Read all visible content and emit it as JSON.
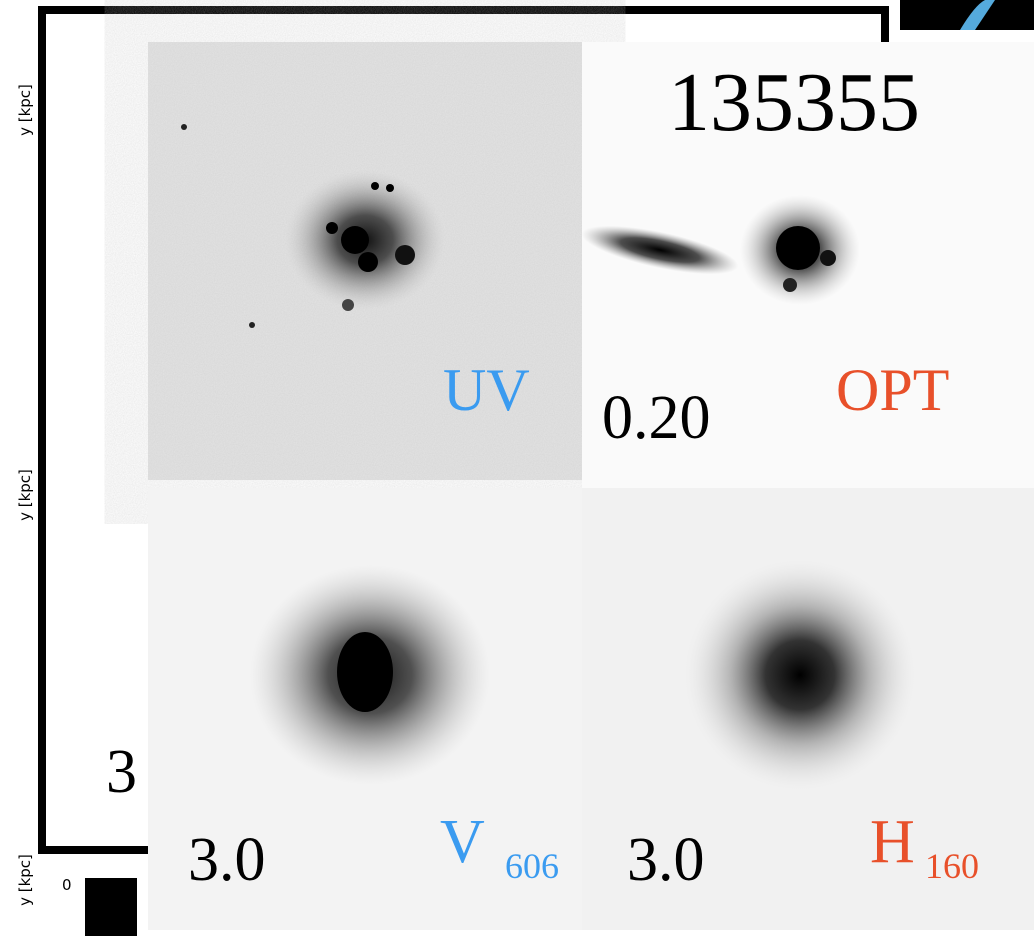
{
  "left_axis": {
    "labels": [
      "y [kpc]",
      "y [kpc]",
      "y [kpc]"
    ],
    "tick": "0",
    "partial_number": "3"
  },
  "panels": {
    "object_id": "135355",
    "top_left": {
      "band": "UV"
    },
    "top_right": {
      "band": "OPT",
      "value": "0.20"
    },
    "bottom_left": {
      "value": "3.0",
      "band": "V",
      "band_sub": "606"
    },
    "bottom_right": {
      "value": "3.0",
      "band": "H",
      "band_sub": "160"
    }
  }
}
